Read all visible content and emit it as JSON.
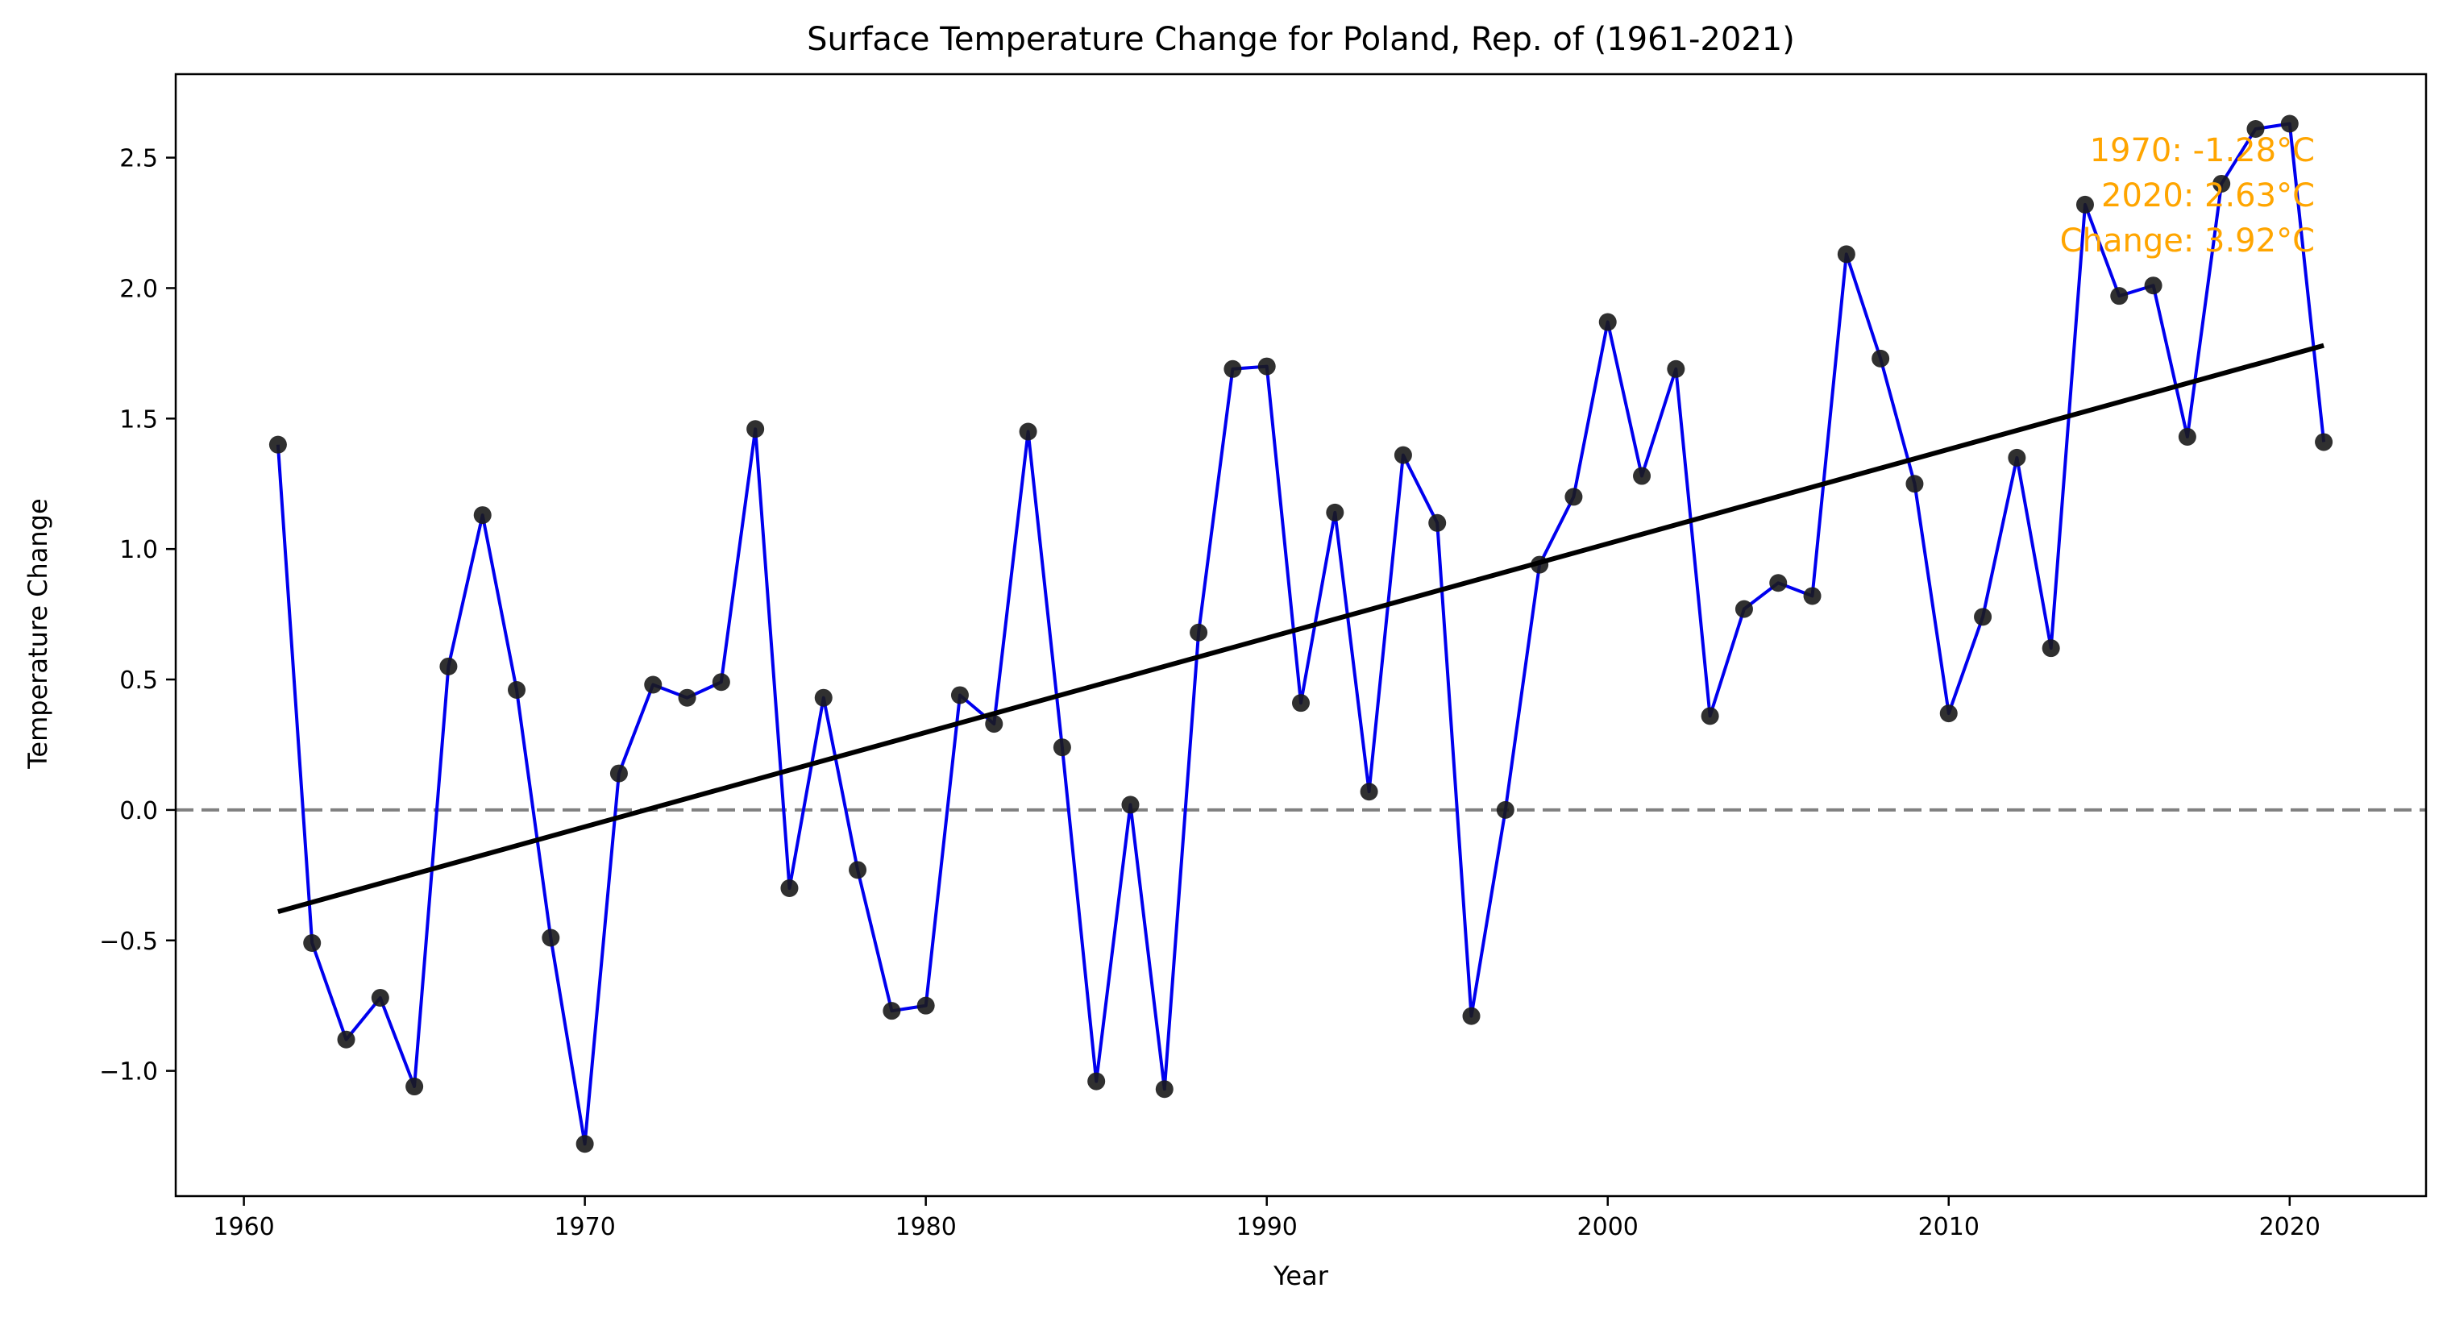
{
  "chart_data": {
    "type": "line",
    "title": "Surface Temperature Change for Poland, Rep. of (1961-2021)",
    "xlabel": "Year",
    "ylabel": "Temperature Change",
    "xlim": [
      1958.0,
      2024.0
    ],
    "ylim": [
      -1.48,
      2.82
    ],
    "xticks": [
      1960,
      1970,
      1980,
      1990,
      2000,
      2010,
      2020
    ],
    "yticks": [
      -1.0,
      -0.5,
      0.0,
      0.5,
      1.0,
      1.5,
      2.0,
      2.5
    ],
    "ytick_labels": [
      "−1.0",
      "−0.5",
      "0.0",
      "0.5",
      "1.0",
      "1.5",
      "2.0",
      "2.5"
    ],
    "grid": false,
    "series": [
      {
        "color": "#0000ee",
        "marker_color": "#1a1a1a",
        "x": [
          1961,
          1962,
          1963,
          1964,
          1965,
          1966,
          1967,
          1968,
          1969,
          1970,
          1971,
          1972,
          1973,
          1974,
          1975,
          1976,
          1977,
          1978,
          1979,
          1980,
          1981,
          1982,
          1983,
          1984,
          1985,
          1986,
          1987,
          1988,
          1989,
          1990,
          1991,
          1992,
          1993,
          1994,
          1995,
          1996,
          1997,
          1998,
          1999,
          2000,
          2001,
          2002,
          2003,
          2004,
          2005,
          2006,
          2007,
          2008,
          2009,
          2010,
          2011,
          2012,
          2013,
          2014,
          2015,
          2016,
          2017,
          2018,
          2019,
          2020,
          2021
        ],
        "y": [
          1.4,
          -0.51,
          -0.88,
          -0.72,
          -1.06,
          0.55,
          1.13,
          0.46,
          -0.49,
          -1.28,
          0.14,
          0.48,
          0.43,
          0.49,
          1.46,
          -0.3,
          0.43,
          -0.23,
          -0.77,
          -0.75,
          0.44,
          0.33,
          1.45,
          0.24,
          -1.04,
          0.02,
          -1.07,
          0.68,
          1.69,
          1.7,
          0.41,
          1.14,
          0.07,
          1.36,
          1.1,
          -0.79,
          0.0,
          0.94,
          1.2,
          1.87,
          1.28,
          1.69,
          0.36,
          0.77,
          0.87,
          0.82,
          2.13,
          1.73,
          1.25,
          0.37,
          0.74,
          1.35,
          0.62,
          2.32,
          1.97,
          2.01,
          1.43,
          2.4,
          2.61,
          2.63,
          1.41
        ]
      }
    ],
    "trend_line": {
      "x": [
        1961,
        2021
      ],
      "y": [
        -0.39,
        1.78
      ],
      "color": "#000000"
    },
    "reference_line": {
      "y": 0.0,
      "color": "#808080",
      "style": "dashed"
    },
    "annotation": {
      "color": "#ffa500",
      "lines": [
        "1970: -1.28°C",
        "2020: 2.63°C",
        "Change: 3.92°C"
      ]
    }
  }
}
